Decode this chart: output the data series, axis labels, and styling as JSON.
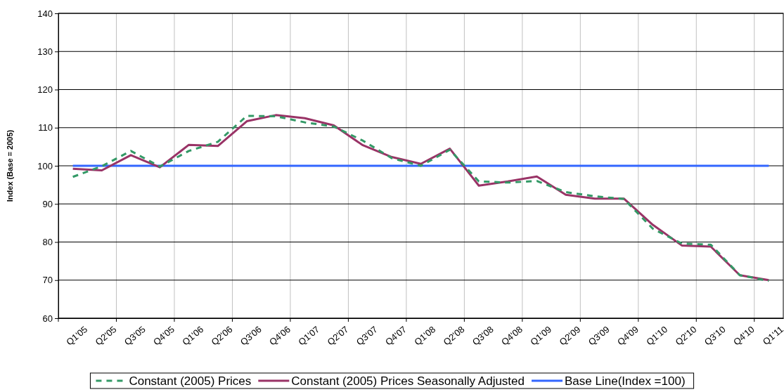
{
  "chart_data": {
    "type": "line",
    "ylabel": "Index (Base = 2005)",
    "categories": [
      "Q1'05",
      "Q2'05",
      "Q3'05",
      "Q4'05",
      "Q1'06",
      "Q2'06",
      "Q3'06",
      "Q4'06",
      "Q1'07",
      "Q2'07",
      "Q3'07",
      "Q4'07",
      "Q1'08",
      "Q2'08",
      "Q3'08",
      "Q4'08",
      "Q1'09",
      "Q2'09",
      "Q3'09",
      "Q4'09",
      "Q1'10",
      "Q2'10",
      "Q3'10",
      "Q4'10",
      "Q1'11"
    ],
    "series": [
      {
        "name": "Constant (2005) Prices",
        "color": "#339966",
        "line_style": "dashed",
        "values": [
          97.1,
          99.9,
          103.9,
          99.8,
          103.9,
          106.3,
          113.1,
          113.0,
          111.4,
          110.3,
          106.6,
          102.0,
          100.0,
          104.2,
          95.9,
          95.6,
          96.0,
          93.1,
          92.0,
          91.3,
          83.5,
          79.6,
          79.3,
          71.3,
          69.8
        ]
      },
      {
        "name": "Constant (2005) Prices Seasonally Adjusted",
        "color": "#993366",
        "line_style": "solid",
        "values": [
          99.2,
          98.8,
          102.8,
          99.6,
          105.5,
          105.2,
          111.7,
          113.3,
          112.5,
          110.6,
          105.4,
          102.3,
          100.5,
          104.5,
          94.8,
          95.9,
          97.2,
          92.4,
          91.4,
          91.4,
          84.5,
          79.1,
          78.8,
          71.3,
          70.0
        ]
      },
      {
        "name": "Base Line(Index =100)",
        "color": "#3366ff",
        "line_style": "solid",
        "values": [
          100,
          100,
          100,
          100,
          100,
          100,
          100,
          100,
          100,
          100,
          100,
          100,
          100,
          100,
          100,
          100,
          100,
          100,
          100,
          100,
          100,
          100,
          100,
          100,
          100
        ]
      }
    ],
    "ylim": [
      60,
      140
    ],
    "yticks": [
      60,
      70,
      80,
      90,
      100,
      110,
      120,
      130,
      140
    ],
    "grid": true,
    "legend": "bottom",
    "marker": "none"
  }
}
